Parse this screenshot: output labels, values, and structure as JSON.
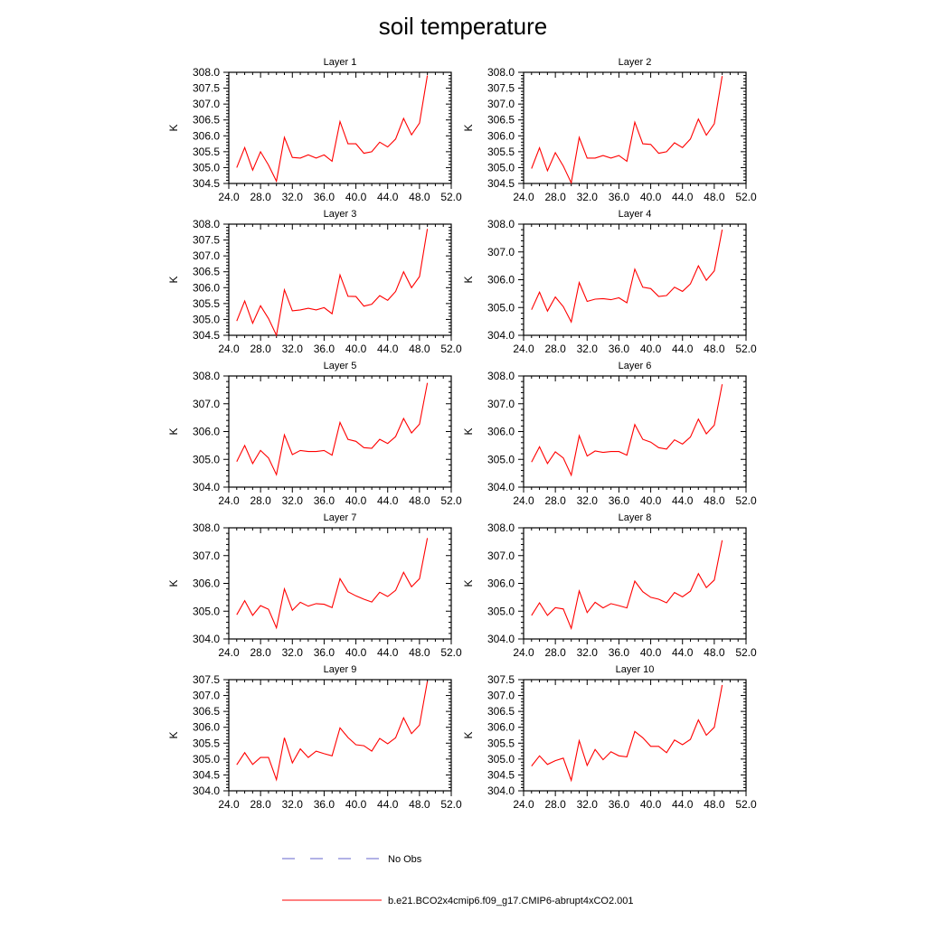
{
  "figure": {
    "title": "soil temperature",
    "legend": [
      {
        "label": "No Obs",
        "color": "#6666cc",
        "style": "dashed"
      },
      {
        "label": "b.e21.BCO2x4cmip6.f09_g17.CMIP6-abrupt4xCO2.001",
        "color": "#ff0000",
        "style": "solid"
      }
    ]
  },
  "chart_data": [
    {
      "type": "line",
      "title": "Layer 1",
      "xlabel": "",
      "ylabel": "K",
      "xlim": [
        24,
        52
      ],
      "ylim": [
        304.5,
        308.0
      ],
      "xticks": [
        "24.0",
        "28.0",
        "32.0",
        "36.0",
        "40.0",
        "44.0",
        "48.0",
        "52.0"
      ],
      "yticks": [
        "304.5",
        "305.0",
        "305.5",
        "306.0",
        "306.5",
        "307.0",
        "307.5",
        "308.0"
      ],
      "x": [
        25,
        26,
        27,
        28,
        29,
        30,
        31,
        32,
        33,
        34,
        35,
        36,
        37,
        38,
        39,
        40,
        41,
        42,
        43,
        44,
        45,
        46,
        47,
        48,
        49
      ],
      "series": [
        {
          "name": "b.e21.BCO2x4cmip6.f09_g17.CMIP6-abrupt4xCO2.001",
          "color": "#ff0000",
          "values": [
            305.0,
            305.63,
            304.92,
            305.5,
            305.08,
            304.57,
            305.95,
            305.32,
            305.3,
            305.4,
            305.3,
            305.4,
            305.2,
            306.45,
            305.75,
            305.75,
            305.45,
            305.5,
            305.8,
            305.65,
            305.9,
            306.55,
            306.03,
            306.4,
            307.9
          ]
        }
      ]
    },
    {
      "type": "line",
      "title": "Layer 2",
      "xlabel": "",
      "ylabel": "K",
      "xlim": [
        24,
        52
      ],
      "ylim": [
        304.5,
        308.0
      ],
      "xticks": [
        "24.0",
        "28.0",
        "32.0",
        "36.0",
        "40.0",
        "44.0",
        "48.0",
        "52.0"
      ],
      "yticks": [
        "304.5",
        "305.0",
        "305.5",
        "306.0",
        "306.5",
        "307.0",
        "307.5",
        "308.0"
      ],
      "x": [
        25,
        26,
        27,
        28,
        29,
        30,
        31,
        32,
        33,
        34,
        35,
        36,
        37,
        38,
        39,
        40,
        41,
        42,
        43,
        44,
        45,
        46,
        47,
        48,
        49
      ],
      "series": [
        {
          "name": "b.e21.BCO2x4cmip6.f09_g17.CMIP6-abrupt4xCO2.001",
          "color": "#ff0000",
          "values": [
            304.97,
            305.62,
            304.9,
            305.47,
            305.05,
            304.52,
            305.95,
            305.3,
            305.3,
            305.38,
            305.3,
            305.38,
            305.2,
            306.43,
            305.75,
            305.73,
            305.45,
            305.5,
            305.78,
            305.63,
            305.9,
            306.53,
            306.02,
            306.38,
            307.88
          ]
        }
      ]
    },
    {
      "type": "line",
      "title": "Layer 3",
      "xlabel": "",
      "ylabel": "K",
      "xlim": [
        24,
        52
      ],
      "ylim": [
        304.5,
        308.0
      ],
      "xticks": [
        "24.0",
        "28.0",
        "32.0",
        "36.0",
        "40.0",
        "44.0",
        "48.0",
        "52.0"
      ],
      "yticks": [
        "304.5",
        "305.0",
        "305.5",
        "306.0",
        "306.5",
        "307.0",
        "307.5",
        "308.0"
      ],
      "x": [
        25,
        26,
        27,
        28,
        29,
        30,
        31,
        32,
        33,
        34,
        35,
        36,
        37,
        38,
        39,
        40,
        41,
        42,
        43,
        44,
        45,
        46,
        47,
        48,
        49
      ],
      "series": [
        {
          "name": "b.e21.BCO2x4cmip6.f09_g17.CMIP6-abrupt4xCO2.001",
          "color": "#ff0000",
          "values": [
            304.95,
            305.58,
            304.88,
            305.43,
            305.03,
            304.5,
            305.93,
            305.27,
            305.3,
            305.35,
            305.3,
            305.37,
            305.18,
            306.4,
            305.73,
            305.72,
            305.42,
            305.48,
            305.75,
            305.6,
            305.88,
            306.5,
            306.0,
            306.35,
            307.85
          ]
        }
      ]
    },
    {
      "type": "line",
      "title": "Layer 4",
      "xlabel": "",
      "ylabel": "K",
      "xlim": [
        24,
        52
      ],
      "ylim": [
        304.0,
        308.0
      ],
      "xticks": [
        "24.0",
        "28.0",
        "32.0",
        "36.0",
        "40.0",
        "44.0",
        "48.0",
        "52.0"
      ],
      "yticks": [
        "304.0",
        "305.0",
        "306.0",
        "307.0",
        "308.0"
      ],
      "x": [
        25,
        26,
        27,
        28,
        29,
        30,
        31,
        32,
        33,
        34,
        35,
        36,
        37,
        38,
        39,
        40,
        41,
        42,
        43,
        44,
        45,
        46,
        47,
        48,
        49
      ],
      "series": [
        {
          "name": "b.e21.BCO2x4cmip6.f09_g17.CMIP6-abrupt4xCO2.001",
          "color": "#ff0000",
          "values": [
            304.92,
            305.55,
            304.87,
            305.38,
            305.03,
            304.48,
            305.9,
            305.22,
            305.3,
            305.32,
            305.28,
            305.35,
            305.17,
            306.38,
            305.73,
            305.68,
            305.4,
            305.43,
            305.73,
            305.58,
            305.85,
            306.5,
            305.98,
            306.32,
            307.8
          ]
        }
      ]
    },
    {
      "type": "line",
      "title": "Layer 5",
      "xlabel": "",
      "ylabel": "K",
      "xlim": [
        24,
        52
      ],
      "ylim": [
        304.0,
        308.0
      ],
      "xticks": [
        "24.0",
        "28.0",
        "32.0",
        "36.0",
        "40.0",
        "44.0",
        "48.0",
        "52.0"
      ],
      "yticks": [
        "304.0",
        "305.0",
        "306.0",
        "307.0",
        "308.0"
      ],
      "x": [
        25,
        26,
        27,
        28,
        29,
        30,
        31,
        32,
        33,
        34,
        35,
        36,
        37,
        38,
        39,
        40,
        41,
        42,
        43,
        44,
        45,
        46,
        47,
        48,
        49
      ],
      "series": [
        {
          "name": "b.e21.BCO2x4cmip6.f09_g17.CMIP6-abrupt4xCO2.001",
          "color": "#ff0000",
          "values": [
            304.92,
            305.5,
            304.85,
            305.32,
            305.05,
            304.45,
            305.88,
            305.17,
            305.32,
            305.28,
            305.28,
            305.32,
            305.15,
            306.33,
            305.72,
            305.65,
            305.42,
            305.4,
            305.72,
            305.57,
            305.82,
            306.47,
            305.95,
            306.27,
            307.75
          ]
        }
      ]
    },
    {
      "type": "line",
      "title": "Layer 6",
      "xlabel": "",
      "ylabel": "K",
      "xlim": [
        24,
        52
      ],
      "ylim": [
        304.0,
        308.0
      ],
      "xticks": [
        "24.0",
        "28.0",
        "32.0",
        "36.0",
        "40.0",
        "44.0",
        "48.0",
        "52.0"
      ],
      "yticks": [
        "304.0",
        "305.0",
        "306.0",
        "307.0",
        "308.0"
      ],
      "x": [
        25,
        26,
        27,
        28,
        29,
        30,
        31,
        32,
        33,
        34,
        35,
        36,
        37,
        38,
        39,
        40,
        41,
        42,
        43,
        44,
        45,
        46,
        47,
        48,
        49
      ],
      "series": [
        {
          "name": "b.e21.BCO2x4cmip6.f09_g17.CMIP6-abrupt4xCO2.001",
          "color": "#ff0000",
          "values": [
            304.9,
            305.45,
            304.85,
            305.27,
            305.05,
            304.43,
            305.85,
            305.12,
            305.3,
            305.25,
            305.28,
            305.28,
            305.15,
            306.25,
            305.72,
            305.62,
            305.42,
            305.37,
            305.7,
            305.55,
            305.8,
            306.45,
            305.92,
            306.23,
            307.7
          ]
        }
      ]
    },
    {
      "type": "line",
      "title": "Layer 7",
      "xlabel": "",
      "ylabel": "K",
      "xlim": [
        24,
        52
      ],
      "ylim": [
        304.0,
        308.0
      ],
      "xticks": [
        "24.0",
        "28.0",
        "32.0",
        "36.0",
        "40.0",
        "44.0",
        "48.0",
        "52.0"
      ],
      "yticks": [
        "304.0",
        "305.0",
        "306.0",
        "307.0",
        "308.0"
      ],
      "x": [
        25,
        26,
        27,
        28,
        29,
        30,
        31,
        32,
        33,
        34,
        35,
        36,
        37,
        38,
        39,
        40,
        41,
        42,
        43,
        44,
        45,
        46,
        47,
        48,
        49
      ],
      "series": [
        {
          "name": "b.e21.BCO2x4cmip6.f09_g17.CMIP6-abrupt4xCO2.001",
          "color": "#ff0000",
          "values": [
            304.87,
            305.38,
            304.85,
            305.2,
            305.07,
            304.4,
            305.8,
            305.03,
            305.32,
            305.18,
            305.27,
            305.25,
            305.13,
            306.17,
            305.7,
            305.55,
            305.43,
            305.33,
            305.68,
            305.53,
            305.75,
            306.4,
            305.88,
            306.17,
            307.63
          ]
        }
      ]
    },
    {
      "type": "line",
      "title": "Layer 8",
      "xlabel": "",
      "ylabel": "K",
      "xlim": [
        24,
        52
      ],
      "ylim": [
        304.0,
        308.0
      ],
      "xticks": [
        "24.0",
        "28.0",
        "32.0",
        "36.0",
        "40.0",
        "44.0",
        "48.0",
        "52.0"
      ],
      "yticks": [
        "304.0",
        "305.0",
        "306.0",
        "307.0",
        "308.0"
      ],
      "x": [
        25,
        26,
        27,
        28,
        29,
        30,
        31,
        32,
        33,
        34,
        35,
        36,
        37,
        38,
        39,
        40,
        41,
        42,
        43,
        44,
        45,
        46,
        47,
        48,
        49
      ],
      "series": [
        {
          "name": "b.e21.BCO2x4cmip6.f09_g17.CMIP6-abrupt4xCO2.001",
          "color": "#ff0000",
          "values": [
            304.85,
            305.3,
            304.85,
            305.13,
            305.08,
            304.38,
            305.73,
            304.95,
            305.32,
            305.12,
            305.27,
            305.2,
            305.12,
            306.08,
            305.7,
            305.5,
            305.43,
            305.3,
            305.67,
            305.52,
            305.72,
            306.35,
            305.85,
            306.12,
            307.55
          ]
        }
      ]
    },
    {
      "type": "line",
      "title": "Layer 9",
      "xlabel": "",
      "ylabel": "K",
      "xlim": [
        24,
        52
      ],
      "ylim": [
        304.0,
        307.5
      ],
      "xticks": [
        "24.0",
        "28.0",
        "32.0",
        "36.0",
        "40.0",
        "44.0",
        "48.0",
        "52.0"
      ],
      "yticks": [
        "304.0",
        "304.5",
        "305.0",
        "305.5",
        "306.0",
        "306.5",
        "307.0",
        "307.5"
      ],
      "x": [
        25,
        26,
        27,
        28,
        29,
        30,
        31,
        32,
        33,
        34,
        35,
        36,
        37,
        38,
        39,
        40,
        41,
        42,
        43,
        44,
        45,
        46,
        47,
        48,
        49
      ],
      "series": [
        {
          "name": "b.e21.BCO2x4cmip6.f09_g17.CMIP6-abrupt4xCO2.001",
          "color": "#ff0000",
          "values": [
            304.82,
            305.2,
            304.83,
            305.05,
            305.05,
            304.35,
            305.67,
            304.88,
            305.32,
            305.05,
            305.25,
            305.17,
            305.1,
            305.98,
            305.68,
            305.45,
            305.42,
            305.25,
            305.65,
            305.48,
            305.67,
            306.3,
            305.8,
            306.07,
            307.45
          ]
        }
      ]
    },
    {
      "type": "line",
      "title": "Layer 10",
      "xlabel": "",
      "ylabel": "K",
      "xlim": [
        24,
        52
      ],
      "ylim": [
        304.0,
        307.5
      ],
      "xticks": [
        "24.0",
        "28.0",
        "32.0",
        "36.0",
        "40.0",
        "44.0",
        "48.0",
        "52.0"
      ],
      "yticks": [
        "304.0",
        "304.5",
        "305.0",
        "305.5",
        "306.0",
        "306.5",
        "307.0",
        "307.5"
      ],
      "x": [
        25,
        26,
        27,
        28,
        29,
        30,
        31,
        32,
        33,
        34,
        35,
        36,
        37,
        38,
        39,
        40,
        41,
        42,
        43,
        44,
        45,
        46,
        47,
        48,
        49
      ],
      "series": [
        {
          "name": "b.e21.BCO2x4cmip6.f09_g17.CMIP6-abrupt4xCO2.001",
          "color": "#ff0000",
          "values": [
            304.78,
            305.1,
            304.83,
            304.95,
            305.03,
            304.33,
            305.58,
            304.8,
            305.3,
            304.98,
            305.23,
            305.1,
            305.07,
            305.87,
            305.67,
            305.4,
            305.4,
            305.2,
            305.6,
            305.45,
            305.62,
            306.23,
            305.75,
            306.0,
            307.33
          ]
        }
      ]
    }
  ]
}
